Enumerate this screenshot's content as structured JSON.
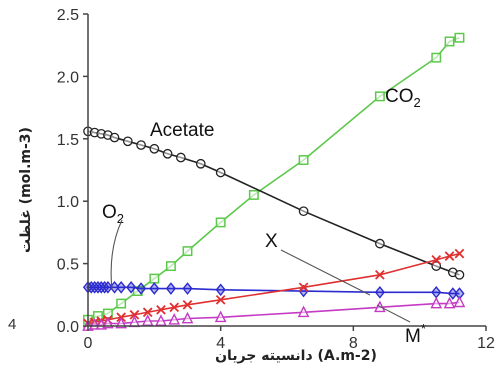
{
  "chart_data": {
    "type": "scatter",
    "xlabel": "دانسیته جریان (A.m-2)",
    "ylabel": "غلظت (mol.m-3)",
    "xlim": [
      0,
      12
    ],
    "ylim": [
      0,
      2.5
    ],
    "xticks": [
      "0",
      "4",
      "8",
      "12"
    ],
    "yticks": [
      "0.0",
      "0.5",
      "1.0",
      "1.5",
      "2.0",
      "2.5"
    ],
    "grid": false,
    "series": [
      {
        "name": "CO2",
        "marker": "square",
        "color": "#5cc94a",
        "x": [
          0,
          0.3,
          0.6,
          1.0,
          1.5,
          2.0,
          2.5,
          3.0,
          4.0,
          5.0,
          6.5,
          8.8,
          10.5,
          10.9,
          11.2
        ],
        "y": [
          0.05,
          0.08,
          0.1,
          0.18,
          0.28,
          0.38,
          0.48,
          0.6,
          0.83,
          1.05,
          1.33,
          1.84,
          2.15,
          2.28,
          2.31
        ]
      },
      {
        "name": "Acetate",
        "marker": "circle",
        "color": "#222222",
        "x": [
          0,
          0.2,
          0.4,
          0.6,
          0.8,
          1.2,
          1.6,
          2.0,
          2.4,
          2.8,
          3.4,
          4.0,
          6.5,
          8.8,
          10.5,
          11.0,
          11.2
        ],
        "y": [
          1.56,
          1.55,
          1.54,
          1.53,
          1.51,
          1.48,
          1.45,
          1.42,
          1.38,
          1.35,
          1.3,
          1.23,
          0.92,
          0.66,
          0.48,
          0.43,
          0.41
        ]
      },
      {
        "name": "O2",
        "marker": "diamond",
        "color": "#2b2bd0",
        "x": [
          0,
          0.1,
          0.2,
          0.3,
          0.4,
          0.5,
          0.6,
          0.8,
          1.0,
          1.3,
          1.6,
          2.0,
          2.5,
          3.0,
          4.0,
          6.5,
          8.8,
          10.5,
          11.0,
          11.2
        ],
        "y": [
          0.31,
          0.31,
          0.31,
          0.31,
          0.31,
          0.31,
          0.31,
          0.31,
          0.31,
          0.31,
          0.3,
          0.3,
          0.3,
          0.3,
          0.29,
          0.28,
          0.27,
          0.27,
          0.26,
          0.26
        ]
      },
      {
        "name": "X",
        "marker": "x",
        "color": "#e03030",
        "x": [
          0,
          0.2,
          0.4,
          0.6,
          1.0,
          1.4,
          1.8,
          2.2,
          2.6,
          3.0,
          4.0,
          6.5,
          8.8,
          10.5,
          10.9,
          11.2
        ],
        "y": [
          0.02,
          0.03,
          0.04,
          0.05,
          0.07,
          0.09,
          0.11,
          0.13,
          0.15,
          0.17,
          0.21,
          0.31,
          0.41,
          0.53,
          0.56,
          0.58
        ]
      },
      {
        "name": "M*",
        "marker": "triangle",
        "color": "#c43ac4",
        "x": [
          0,
          0.2,
          0.4,
          0.6,
          1.0,
          1.4,
          1.8,
          2.2,
          2.6,
          3.0,
          4.0,
          6.5,
          8.8,
          10.5,
          10.9,
          11.2
        ],
        "y": [
          0.0,
          0.01,
          0.01,
          0.02,
          0.02,
          0.03,
          0.04,
          0.04,
          0.05,
          0.06,
          0.07,
          0.11,
          0.15,
          0.18,
          0.18,
          0.19
        ]
      }
    ],
    "annotations": [
      {
        "text": "Acetate",
        "series": "Acetate"
      },
      {
        "text": "CO",
        "sub": "2",
        "series": "CO2"
      },
      {
        "text": "O",
        "sub": "2",
        "series": "O2"
      },
      {
        "text": "X",
        "series": "X"
      },
      {
        "text": "M",
        "sup": "*",
        "series": "M*"
      }
    ],
    "stray_text": "4"
  },
  "colors": {
    "axis": "#444444",
    "co2": "#5cc94a",
    "acetate": "#222222",
    "o2": "#2b2bd0",
    "x": "#e03030",
    "m": "#c43ac4"
  }
}
